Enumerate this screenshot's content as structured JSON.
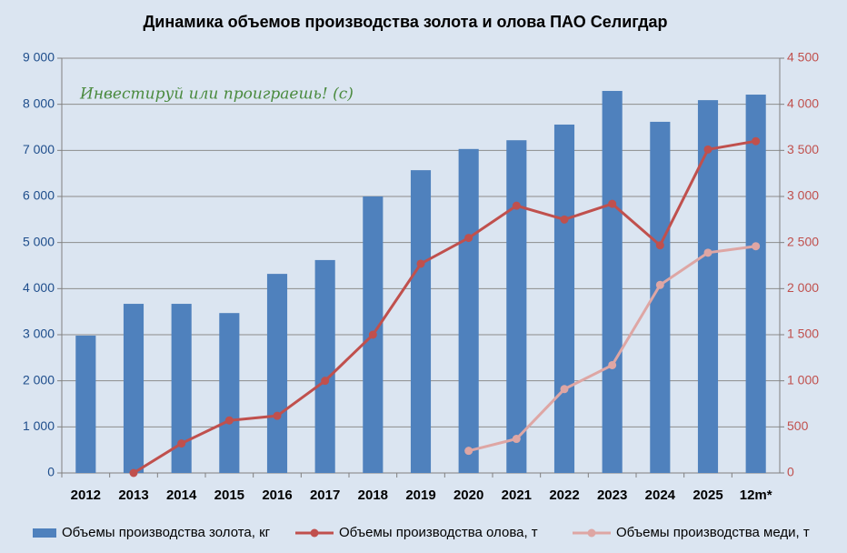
{
  "chart_data": {
    "type": "bar",
    "title": "Динамика объемов производства золота и олова ПАО Селигдар",
    "annotation": "Инвестируй или проиграешь! (с)",
    "categories": [
      "2012",
      "2013",
      "2014",
      "2015",
      "2016",
      "2017",
      "2018",
      "2019",
      "2020",
      "2021",
      "2022",
      "2023",
      "2024",
      "2025",
      "12m*"
    ],
    "series": [
      {
        "name": "Объемы производства золота, кг",
        "type": "bar",
        "color": "#4f81bd",
        "values": [
          2980,
          3670,
          3670,
          3470,
          4320,
          4620,
          6000,
          6570,
          7030,
          7220,
          7560,
          8290,
          7620,
          8090,
          8210
        ]
      },
      {
        "name": "Объемы производства олова, т",
        "type": "line",
        "axis": "y2",
        "color": "#c0504d",
        "values": [
          null,
          0,
          320,
          570,
          620,
          1000,
          1500,
          2270,
          2550,
          2900,
          2750,
          2920,
          2470,
          3510,
          3600
        ]
      },
      {
        "name": "Объемы производства меди, т",
        "type": "line",
        "axis": "y2",
        "color": "#dea6a4",
        "values": [
          null,
          null,
          null,
          null,
          null,
          null,
          null,
          null,
          240,
          370,
          910,
          1170,
          2040,
          2390,
          2460
        ]
      }
    ],
    "ylim": [
      0,
      9000
    ],
    "yticks": [
      0,
      {
        "value": 1000,
        "label": "1 000"
      },
      {
        "value": 2000,
        "label": "2 000"
      },
      {
        "value": 3000,
        "label": "3 000"
      },
      {
        "value": 4000,
        "label": "4 000"
      },
      {
        "value": 5000,
        "label": "5 000"
      },
      {
        "value": 6000,
        "label": "6 000"
      },
      {
        "value": 7000,
        "label": "7 000"
      },
      {
        "value": 8000,
        "label": "8 000"
      },
      {
        "value": 9000,
        "label": "9 000"
      }
    ],
    "y2lim": [
      0,
      4500
    ],
    "y2ticks": [
      0,
      500,
      {
        "value": 1000,
        "label": "1 000"
      },
      {
        "value": 1500,
        "label": "1 500"
      },
      {
        "value": 2000,
        "label": "2 000"
      },
      {
        "value": 2500,
        "label": "2 500"
      },
      {
        "value": 3000,
        "label": "3 000"
      },
      {
        "value": 3500,
        "label": "3 500"
      },
      {
        "value": 4000,
        "label": "4 000"
      },
      {
        "value": 4500,
        "label": "4 500"
      }
    ],
    "grid": true,
    "legend": "bottom"
  }
}
